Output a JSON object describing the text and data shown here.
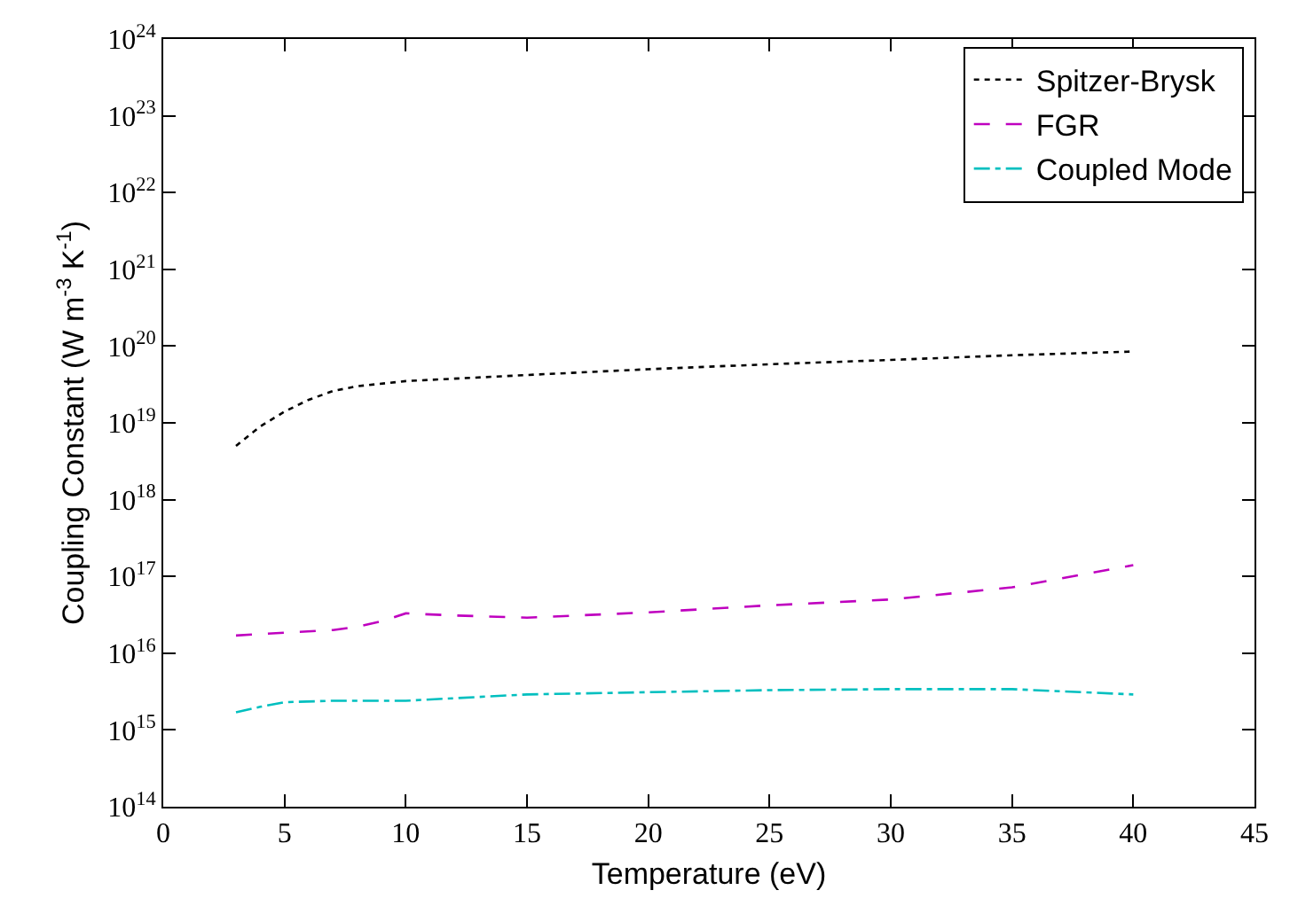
{
  "chart_data": {
    "type": "line",
    "xlabel": "Temperature (eV)",
    "ylabel": "Coupling Constant (W m$^{-3}$ K$^{-1}$)",
    "log": "y",
    "grid": false,
    "legend": "top right",
    "xlim": [
      0,
      45
    ],
    "xticks": [
      0,
      5,
      10,
      15,
      20,
      25,
      30,
      35,
      40,
      45
    ],
    "ylim": [
      100000000000000.0,
      1e+24
    ],
    "yticks": [
      {
        "value": 100000000000000.0,
        "label": "10$^{14}$"
      },
      {
        "value": 1000000000000000.0,
        "label": "10$^{15}$"
      },
      {
        "value": 1e+16,
        "label": "10$^{16}$"
      },
      {
        "value": 1e+17,
        "label": "10$^{17}$"
      },
      {
        "value": 1e+18,
        "label": "10$^{18}$"
      },
      {
        "value": 1e+19,
        "label": "10$^{19}$"
      },
      {
        "value": 1e+20,
        "label": "10$^{20}$"
      },
      {
        "value": 1e+21,
        "label": "10$^{21}$"
      },
      {
        "value": 1e+22,
        "label": "10$^{22}$"
      },
      {
        "value": 1e+23,
        "label": "10$^{23}$"
      },
      {
        "value": 1e+24,
        "label": "10$^{24}$"
      }
    ],
    "series": [
      {
        "name": "Spitzer-Brysk",
        "color": "#000000",
        "line_style": "dotted",
        "x": [
          3,
          4,
          5,
          6,
          7,
          8,
          10,
          15,
          20,
          25,
          30,
          35,
          40
        ],
        "values": [
          5e+18,
          9e+18,
          1.4e+19,
          2e+19,
          2.6e+19,
          3e+19,
          3.5e+19,
          4.2e+19,
          5e+19,
          5.8e+19,
          6.6e+19,
          7.6e+19,
          8.5e+19
        ]
      },
      {
        "name": "FGR",
        "color": "#bf00bf",
        "line_style": "dashed",
        "x": [
          3,
          5,
          7,
          8,
          9,
          10,
          12,
          15,
          20,
          25,
          30,
          35,
          40
        ],
        "values": [
          1.7e+16,
          1.85e+16,
          2e+16,
          2.2e+16,
          2.6e+16,
          3.3e+16,
          3.1e+16,
          2.9e+16,
          3.4e+16,
          4.2e+16,
          5e+16,
          7.2e+16,
          1.4e+17
        ]
      },
      {
        "name": "Coupled Mode",
        "color": "#00bfbf",
        "line_style": "dashdot",
        "x": [
          3,
          4,
          5,
          7,
          10,
          15,
          20,
          25,
          30,
          35,
          40
        ],
        "values": [
          1700000000000000.0,
          2000000000000000.0,
          2300000000000000.0,
          2400000000000000.0,
          2400000000000000.0,
          2900000000000000.0,
          3100000000000000.0,
          3300000000000000.0,
          3400000000000000.0,
          3400000000000000.0,
          2900000000000000.0
        ]
      }
    ]
  }
}
